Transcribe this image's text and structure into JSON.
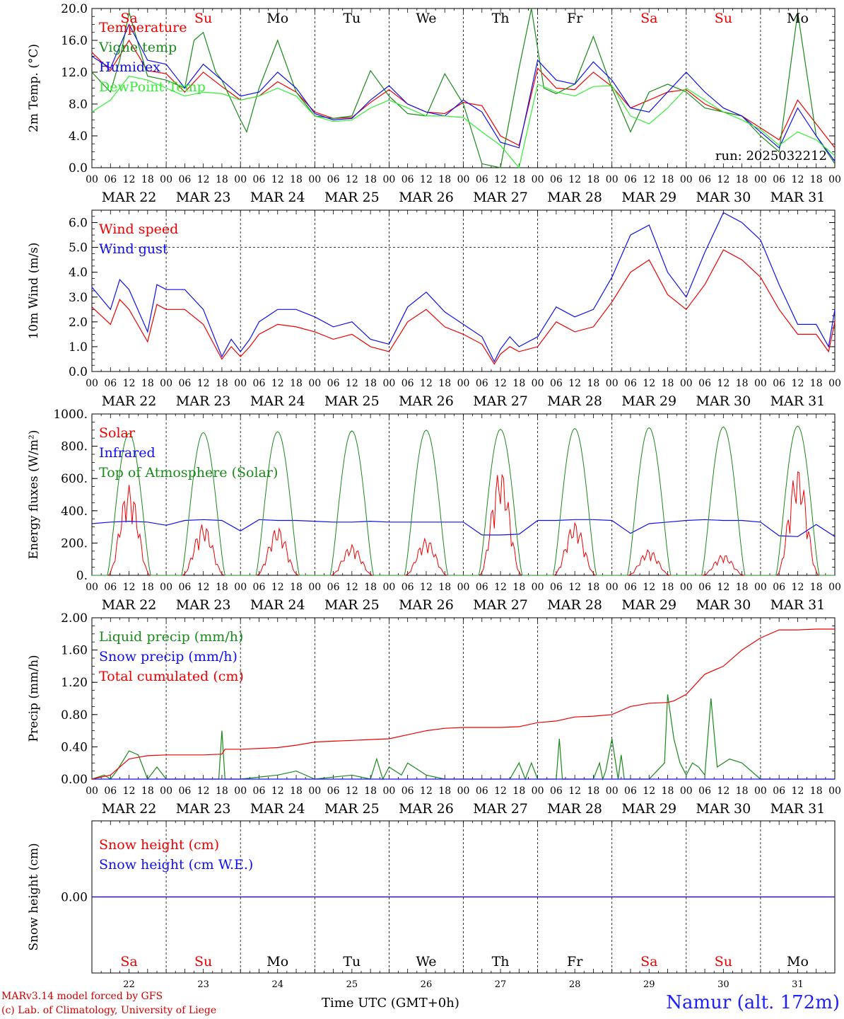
{
  "meta": {
    "run_label": "run: 2025032212",
    "xaxis_title": "Time UTC (GMT+0h)",
    "station": "Namur (alt. 172m)",
    "credits": [
      "MARv3.14 model forced by GFS",
      "(c) Lab. of Climatology, University of Liege"
    ],
    "colors": {
      "red": "#ee0000",
      "green": "#1a8a1a",
      "blue": "#1010ee",
      "lightgreen": "#33ee33",
      "weekend": "#ee0000",
      "weekday": "#000000"
    }
  },
  "days": [
    {
      "abbr": "Sa",
      "date": "MAR 22",
      "num": "22",
      "weekend": true
    },
    {
      "abbr": "Su",
      "date": "MAR 23",
      "num": "23",
      "weekend": true
    },
    {
      "abbr": "Mo",
      "date": "MAR 24",
      "num": "24",
      "weekend": false
    },
    {
      "abbr": "Tu",
      "date": "MAR 25",
      "num": "25",
      "weekend": false
    },
    {
      "abbr": "We",
      "date": "MAR 26",
      "num": "26",
      "weekend": false
    },
    {
      "abbr": "Th",
      "date": "MAR 27",
      "num": "27",
      "weekend": false
    },
    {
      "abbr": "Fr",
      "date": "MAR 28",
      "num": "28",
      "weekend": false
    },
    {
      "abbr": "Sa",
      "date": "MAR 29",
      "num": "29",
      "weekend": true
    },
    {
      "abbr": "Su",
      "date": "MAR 30",
      "num": "30",
      "weekend": true
    },
    {
      "abbr": "Mo",
      "date": "MAR 31",
      "num": "31",
      "weekend": false
    }
  ],
  "hour_ticks": [
    "00",
    "06",
    "12",
    "18"
  ],
  "chart_data": [
    {
      "type": "line",
      "ylabel": "2m Temp. (°C)",
      "ylim": [
        0,
        20
      ],
      "yticks": [
        "0.0",
        "4.0",
        "8.0",
        "12.0",
        "16.0",
        "20.0"
      ],
      "x_unit": "hours since Mar 22 00 UTC",
      "series": [
        {
          "name": "Temperature",
          "color": "#ee0000",
          "x": [
            0,
            6,
            12,
            18,
            24,
            30,
            36,
            42,
            48,
            54,
            60,
            66,
            72,
            78,
            84,
            90,
            96,
            102,
            108,
            114,
            120,
            126,
            132,
            138,
            144,
            150,
            156,
            162,
            168,
            174,
            180,
            186,
            192,
            198,
            204,
            210,
            216,
            222,
            228,
            234,
            240
          ],
          "y": [
            14.5,
            12.2,
            16,
            12.2,
            11.8,
            9.5,
            12,
            10.2,
            8.5,
            9,
            10.8,
            9.5,
            7,
            6.2,
            6.3,
            8.2,
            9.8,
            8,
            7,
            6.8,
            8.2,
            7.8,
            4,
            2.8,
            12.5,
            10,
            9.8,
            12,
            10.2,
            7.5,
            8.5,
            9.5,
            9.8,
            8,
            7,
            6.5,
            5,
            3.5,
            8.5,
            5.5,
            2.5
          ]
        },
        {
          "name": "Vigne temp",
          "color": "#1a8a1a",
          "x": [
            0,
            6,
            9,
            12,
            18,
            24,
            30,
            33,
            36,
            40,
            42,
            48,
            50,
            54,
            60,
            66,
            72,
            78,
            84,
            90,
            96,
            102,
            108,
            114,
            120,
            126,
            132,
            138,
            142,
            146,
            150,
            156,
            162,
            168,
            174,
            180,
            186,
            192,
            198,
            204,
            210,
            216,
            222,
            228,
            234,
            240
          ],
          "y": [
            12,
            9.5,
            13.5,
            19.5,
            11.5,
            11,
            10,
            16,
            17,
            12,
            11,
            6,
            4.5,
            10,
            16,
            9.5,
            6.5,
            6.2,
            6.5,
            12.2,
            9,
            6.8,
            6.5,
            11.8,
            8,
            0.5,
            0,
            12.5,
            20,
            10,
            9.3,
            10.5,
            16.5,
            10,
            4.5,
            9.5,
            10.5,
            9.5,
            7.5,
            7,
            6.5,
            4,
            2,
            19.5,
            4,
            0.5
          ]
        },
        {
          "name": "Humidex",
          "color": "#1010ee",
          "x": [
            0,
            6,
            12,
            18,
            24,
            30,
            36,
            42,
            48,
            54,
            60,
            66,
            72,
            78,
            84,
            90,
            96,
            102,
            108,
            114,
            120,
            126,
            132,
            138,
            144,
            150,
            156,
            162,
            168,
            174,
            180,
            186,
            192,
            198,
            204,
            210,
            216,
            222,
            228,
            234,
            240
          ],
          "y": [
            14,
            12.5,
            18,
            13.5,
            13,
            10,
            13,
            11,
            9,
            9.5,
            12,
            10,
            6.8,
            6,
            6.2,
            8.5,
            10.3,
            8,
            7,
            6.5,
            8.5,
            7,
            3.2,
            2.5,
            13.5,
            11,
            10.5,
            13.3,
            11,
            7.5,
            7,
            9.5,
            12,
            9.5,
            7.5,
            6.5,
            4.5,
            2.5,
            7.5,
            4,
            0.8
          ]
        },
        {
          "name": "DewPoint Temp",
          "color": "#33ee33",
          "x": [
            0,
            6,
            12,
            18,
            24,
            30,
            36,
            42,
            48,
            54,
            60,
            66,
            72,
            78,
            84,
            90,
            96,
            102,
            108,
            114,
            120,
            126,
            132,
            138,
            144,
            150,
            156,
            162,
            168,
            174,
            180,
            186,
            192,
            198,
            204,
            210,
            216,
            222,
            228,
            234,
            240
          ],
          "y": [
            7,
            8.5,
            11.5,
            11,
            10,
            9,
            9.5,
            9.3,
            8.5,
            9,
            10,
            9,
            6.5,
            5.8,
            6,
            7.5,
            8.5,
            7.5,
            6.5,
            6.5,
            6.3,
            4.5,
            2.8,
            0,
            10.5,
            9.5,
            9,
            10.2,
            10.3,
            6.5,
            5.5,
            7.5,
            10,
            8.5,
            7,
            6,
            4.8,
            2.8,
            4.5,
            3.5,
            1.5
          ]
        }
      ]
    },
    {
      "type": "line",
      "ylabel": "10m Wind (m/s)",
      "ylim": [
        0,
        6.5
      ],
      "yticks": [
        "0.0",
        "1.0",
        "2.0",
        "3.0",
        "4.0",
        "5.0",
        "6.0"
      ],
      "ref_line": 5.0,
      "series": [
        {
          "name": "Wind speed",
          "color": "#ee0000",
          "x": [
            0,
            6,
            9,
            12,
            18,
            21,
            24,
            30,
            36,
            42,
            45,
            48,
            51,
            54,
            60,
            66,
            72,
            78,
            84,
            90,
            96,
            102,
            108,
            114,
            120,
            126,
            130,
            132,
            135,
            138,
            144,
            150,
            156,
            162,
            168,
            174,
            180,
            186,
            192,
            198,
            204,
            210,
            216,
            222,
            228,
            234,
            238,
            240
          ],
          "y": [
            2.6,
            1.9,
            2.9,
            2.5,
            1.2,
            2.7,
            2.5,
            2.5,
            1.9,
            0.5,
            1,
            0.6,
            1,
            1.5,
            1.9,
            1.8,
            1.6,
            1.3,
            1.5,
            1.0,
            0.8,
            2.0,
            2.5,
            1.8,
            1.5,
            1.1,
            0.3,
            0.7,
            1.0,
            0.8,
            1.0,
            2.0,
            1.6,
            1.8,
            2.8,
            4.0,
            4.5,
            3.1,
            2.5,
            3.5,
            4.9,
            4.5,
            3.8,
            2.5,
            1.5,
            1.5,
            0.8,
            2.0
          ]
        },
        {
          "name": "Wind gust",
          "color": "#1010ee",
          "x": [
            0,
            6,
            9,
            12,
            18,
            21,
            24,
            30,
            36,
            42,
            45,
            48,
            51,
            54,
            60,
            66,
            72,
            78,
            84,
            90,
            96,
            102,
            108,
            114,
            120,
            126,
            130,
            132,
            135,
            138,
            144,
            150,
            156,
            162,
            168,
            174,
            180,
            186,
            192,
            198,
            204,
            210,
            216,
            222,
            228,
            234,
            238,
            240
          ],
          "y": [
            3.4,
            2.5,
            3.7,
            3.3,
            1.6,
            3.5,
            3.3,
            3.3,
            2.5,
            0.6,
            1.3,
            0.8,
            1.3,
            2.0,
            2.5,
            2.5,
            2.2,
            1.8,
            2.0,
            1.3,
            1.1,
            2.6,
            3.2,
            2.4,
            1.9,
            1.4,
            0.4,
            0.9,
            1.4,
            1.0,
            1.4,
            2.6,
            2.2,
            2.5,
            3.8,
            5.5,
            5.9,
            4.0,
            3.0,
            4.8,
            6.4,
            6.0,
            5.3,
            3.5,
            1.9,
            1.9,
            1.0,
            2.5
          ]
        }
      ]
    },
    {
      "type": "line",
      "ylabel": "Energy fluxes (W/m²)",
      "ylim": [
        0,
        1000
      ],
      "yticks": [
        "0.",
        "200.",
        "400.",
        "600.",
        "800.",
        "1000."
      ],
      "series": [
        {
          "name": "Solar",
          "color": "#ee0000",
          "day_peaks": [
            560,
            320,
            300,
            190,
            230,
            660,
            330,
            160,
            130,
            670
          ]
        },
        {
          "name": "Infrared",
          "color": "#1010ee",
          "x": [
            0,
            6,
            12,
            18,
            24,
            30,
            36,
            42,
            48,
            54,
            60,
            66,
            72,
            78,
            84,
            90,
            96,
            102,
            108,
            114,
            120,
            126,
            132,
            138,
            144,
            150,
            156,
            162,
            168,
            174,
            180,
            186,
            192,
            198,
            204,
            210,
            216,
            222,
            228,
            234,
            240
          ],
          "y": [
            320,
            330,
            335,
            330,
            310,
            340,
            345,
            340,
            275,
            345,
            340,
            340,
            335,
            330,
            330,
            335,
            330,
            330,
            330,
            330,
            330,
            250,
            250,
            255,
            340,
            340,
            345,
            345,
            340,
            260,
            320,
            330,
            340,
            345,
            340,
            340,
            330,
            245,
            240,
            315,
            240
          ]
        },
        {
          "name": "Top of Atmosphere (Solar)",
          "color": "#1a8a1a",
          "day_peaks": [
            880,
            885,
            890,
            895,
            900,
            905,
            910,
            915,
            920,
            925
          ]
        }
      ]
    },
    {
      "type": "line",
      "ylabel": "Precip (mm/h)",
      "ylim": [
        0,
        2.0
      ],
      "yticks": [
        "0.00",
        "0.40",
        "0.80",
        "1.20",
        "1.60",
        "2.00"
      ],
      "series": [
        {
          "name": "Liquid precip (mm/h)",
          "color": "#1a8a1a",
          "x": [
            0,
            4,
            6,
            8,
            12,
            15,
            18,
            21,
            24,
            30,
            36,
            41,
            42,
            43,
            48,
            60,
            66,
            72,
            84,
            90,
            92,
            94,
            96,
            100,
            102,
            104,
            108,
            114,
            120,
            126,
            132,
            135,
            138,
            140,
            142,
            144,
            147,
            150,
            151,
            152,
            156,
            162,
            164,
            165,
            166,
            168,
            170,
            171,
            172,
            174,
            180,
            185,
            186,
            188,
            190,
            192,
            194,
            196,
            198,
            200,
            202,
            204,
            206,
            210,
            216,
            228,
            240
          ],
          "y": [
            0,
            0.05,
            0,
            0.1,
            0.35,
            0.3,
            0,
            0.15,
            0,
            0,
            0,
            0,
            0.6,
            0,
            0,
            0.05,
            0.1,
            0,
            0.05,
            0,
            0.25,
            0,
            0.15,
            0.05,
            0.2,
            0.15,
            0.05,
            0,
            0,
            0,
            0,
            0,
            0.2,
            0,
            0.2,
            0,
            0,
            0,
            0.5,
            0,
            0,
            0,
            0.2,
            0,
            0.1,
            0.5,
            0,
            0.3,
            0,
            0,
            0,
            0.2,
            1.05,
            0.5,
            0.2,
            0.05,
            0.2,
            0.15,
            0.05,
            1.0,
            0.15,
            0.2,
            0.25,
            0.2,
            0,
            0,
            0
          ]
        },
        {
          "name": "Snow precip (mm/h)",
          "color": "#1010ee",
          "x": [
            0,
            240
          ],
          "y": [
            0,
            0
          ]
        },
        {
          "name": "Total cumulated (cm)",
          "color": "#ee0000",
          "x": [
            0,
            6,
            9,
            12,
            15,
            18,
            24,
            30,
            36,
            42,
            43,
            48,
            60,
            66,
            72,
            78,
            84,
            90,
            96,
            102,
            108,
            114,
            120,
            126,
            132,
            138,
            144,
            150,
            156,
            162,
            168,
            174,
            180,
            186,
            188,
            192,
            198,
            204,
            210,
            216,
            222,
            228,
            234,
            240
          ],
          "y": [
            0,
            0.05,
            0.15,
            0.25,
            0.27,
            0.29,
            0.3,
            0.3,
            0.3,
            0.31,
            0.37,
            0.37,
            0.39,
            0.42,
            0.46,
            0.47,
            0.48,
            0.49,
            0.5,
            0.55,
            0.6,
            0.63,
            0.64,
            0.64,
            0.64,
            0.65,
            0.7,
            0.72,
            0.77,
            0.78,
            0.8,
            0.9,
            0.94,
            0.95,
            0.97,
            1.05,
            1.3,
            1.4,
            1.6,
            1.75,
            1.85,
            1.85,
            1.86,
            1.86
          ]
        }
      ]
    },
    {
      "type": "line",
      "ylabel": "Snow height (cm)",
      "yticks": [
        "0.00"
      ],
      "series": [
        {
          "name": "Snow height (cm)",
          "color": "#ee0000",
          "x": [
            0,
            240
          ],
          "y": [
            0,
            0
          ]
        },
        {
          "name": "Snow height (cm W.E.)",
          "color": "#1010ee",
          "x": [
            0,
            240
          ],
          "y": [
            0,
            0
          ]
        }
      ]
    }
  ]
}
